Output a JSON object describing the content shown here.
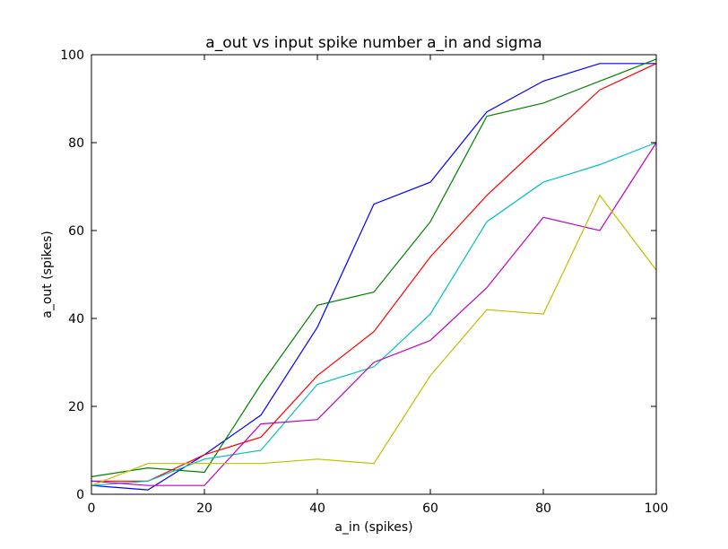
{
  "chart_data": {
    "type": "line",
    "title": "a_out vs input spike number a_in and sigma",
    "xlabel": "a_in (spikes)",
    "ylabel": "a_out (spikes)",
    "xlim": [
      0,
      100
    ],
    "ylim": [
      0,
      100
    ],
    "x_ticks": [
      "0",
      "20",
      "40",
      "60",
      "80",
      "100"
    ],
    "y_ticks": [
      "0",
      "20",
      "40",
      "60",
      "80",
      "100"
    ],
    "grid": false,
    "legend": "none",
    "x": [
      0,
      10,
      20,
      30,
      40,
      50,
      60,
      70,
      80,
      90,
      100
    ],
    "series": [
      {
        "color": "#0000ff",
        "values": [
          2,
          1,
          9,
          18,
          38,
          66,
          71,
          87,
          94,
          98,
          98
        ]
      },
      {
        "color": "#008000",
        "values": [
          4,
          6,
          5,
          25,
          43,
          46,
          62,
          86,
          89,
          94,
          99
        ]
      },
      {
        "color": "#ff0000",
        "values": [
          3,
          3,
          9,
          13,
          27,
          37,
          54,
          68,
          80,
          92,
          98
        ]
      },
      {
        "color": "#00bfbf",
        "values": [
          2,
          3,
          8,
          10,
          25,
          29,
          41,
          62,
          71,
          75,
          80
        ]
      },
      {
        "color": "#bf00bf",
        "values": [
          3,
          2,
          2,
          16,
          17,
          30,
          35,
          47,
          63,
          60,
          80
        ]
      },
      {
        "color": "#bfbf00",
        "values": [
          2,
          7,
          7,
          7,
          8,
          7,
          27,
          42,
          41,
          68,
          51
        ]
      }
    ]
  }
}
